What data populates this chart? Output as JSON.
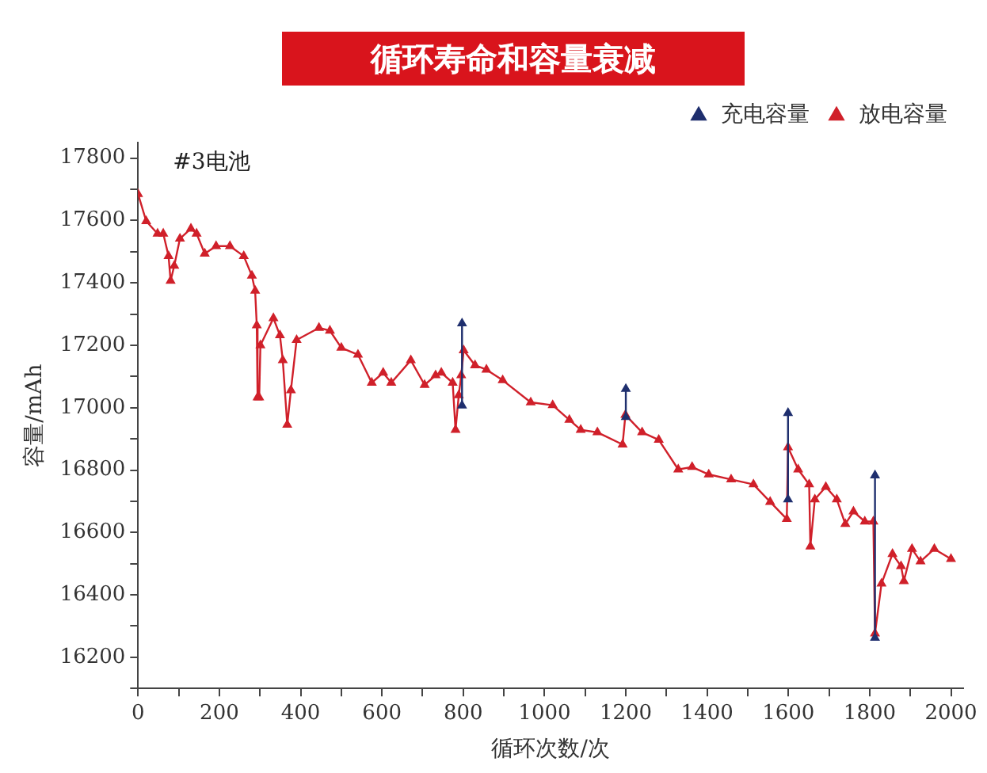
{
  "chart_data": {
    "type": "line",
    "title": "循环寿命和容量衰减",
    "xlabel": "循环次数/次",
    "ylabel": "容量/mAh",
    "annotations": [
      "#3电池"
    ],
    "xlim": [
      0,
      2030
    ],
    "xticks": [
      0,
      {
        "value": 100,
        "label": null
      },
      200,
      {
        "value": 300,
        "label": null
      },
      400,
      {
        "value": 500,
        "label": null
      },
      600,
      {
        "value": 700,
        "label": null
      },
      800,
      {
        "value": 900,
        "label": null
      },
      1000,
      {
        "value": 1100,
        "label": null
      },
      1200,
      {
        "value": 1300,
        "label": null
      },
      1400,
      {
        "value": 1500,
        "label": null
      },
      1600,
      {
        "value": 1700,
        "label": null
      },
      1800,
      {
        "value": 1900,
        "label": null
      },
      2000
    ],
    "ylim": [
      16100,
      17850
    ],
    "yticks": [
      {
        "value": 16100,
        "label": null
      },
      16200,
      {
        "value": 16300,
        "label": null
      },
      16400,
      {
        "value": 16500,
        "label": null
      },
      16600,
      {
        "value": 16700,
        "label": null
      },
      16800,
      {
        "value": 16900,
        "label": null
      },
      17000,
      {
        "value": 17100,
        "label": null
      },
      17200,
      {
        "value": 17300,
        "label": null
      },
      17400,
      {
        "value": 17500,
        "label": null
      },
      17600,
      {
        "value": 17700,
        "label": null
      },
      17800
    ],
    "grid": false,
    "legend": "top right",
    "marker": "triangle",
    "line_style": "solid",
    "series": [
      {
        "name": "充电容量",
        "color": "#1f2f6e",
        "x": [
          797,
          797,
          null,
          1200,
          1200,
          null,
          1599,
          1599,
          null,
          1813,
          1813
        ],
        "values": [
          17270,
          17007,
          null,
          17060,
          16970,
          null,
          16983,
          16706,
          null,
          16783,
          16262
        ]
      },
      {
        "name": "放电容量",
        "color": "#d0202a",
        "x": [
          0,
          20,
          48,
          62,
          75,
          80,
          89,
          103,
          130,
          144,
          164,
          192,
          226,
          260,
          280,
          288,
          292,
          294,
          298,
          301,
          333,
          349,
          356,
          367,
          376,
          390,
          445,
          472,
          500,
          541,
          575,
          603,
          623,
          671,
          705,
          732,
          746,
          774,
          781,
          789,
          795,
          801,
          829,
          857,
          897,
          966,
          1020,
          1061,
          1089,
          1130,
          1192,
          1199,
          1240,
          1281,
          1329,
          1363,
          1404,
          1459,
          1514,
          1555,
          1596,
          1599,
          1624,
          1651,
          1654,
          1665,
          1692,
          1719,
          1740,
          1760,
          1788,
          1809,
          1813,
          1829,
          1856,
          1877,
          1884,
          1904,
          1925,
          1959,
          2000
        ],
        "values": [
          17685,
          17598,
          17558,
          17558,
          17486,
          17407,
          17455,
          17542,
          17574,
          17558,
          17494,
          17518,
          17518,
          17486,
          17423,
          17375,
          17264,
          17033,
          17033,
          17200,
          17287,
          17232,
          17152,
          16945,
          17056,
          17217,
          17256,
          17247,
          17192,
          17170,
          17080,
          17112,
          17080,
          17152,
          17073,
          17104,
          17112,
          17080,
          16929,
          17040,
          17104,
          17184,
          17136,
          17122,
          17088,
          17017,
          17008,
          16961,
          16929,
          16921,
          16882,
          16977,
          16921,
          16897,
          16802,
          16810,
          16786,
          16770,
          16754,
          16698,
          16643,
          16873,
          16802,
          16754,
          16555,
          16706,
          16746,
          16706,
          16627,
          16667,
          16635,
          16635,
          16276,
          16436,
          16531,
          16492,
          16444,
          16547,
          16507,
          16547,
          16515
        ]
      }
    ]
  }
}
